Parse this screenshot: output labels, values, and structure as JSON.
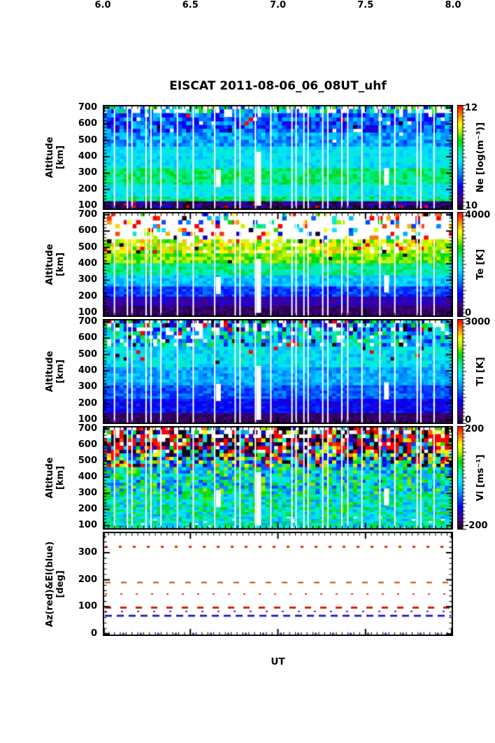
{
  "title": "EISCAT 2011-08-06_06_08UT_uhf",
  "x_axis": {
    "label": "UT",
    "tick_labels": [
      "6.0",
      "6.5",
      "7.0",
      "7.5",
      "8.0"
    ],
    "lim": [
      6.0,
      8.0
    ]
  },
  "colormap": [
    [
      0.0,
      "#160020"
    ],
    [
      0.1,
      "#45008e"
    ],
    [
      0.22,
      "#0000ff"
    ],
    [
      0.34,
      "#0084ff"
    ],
    [
      0.46,
      "#00e8ff"
    ],
    [
      0.56,
      "#00f0a0"
    ],
    [
      0.66,
      "#00d800"
    ],
    [
      0.74,
      "#a8f000"
    ],
    [
      0.82,
      "#ffff00"
    ],
    [
      0.9,
      "#ff8c00"
    ],
    [
      1.0,
      "#ff0000"
    ]
  ],
  "data_gaps": {
    "narrow": "white vertical scan-boundary gap columns repeated through all heatmap panels",
    "wide": [
      {
        "ut": 6.66,
        "alt": [
          215,
          320
        ]
      },
      {
        "ut": 6.89,
        "alt": [
          100,
          430
        ]
      },
      {
        "ut": 7.62,
        "alt": [
          225,
          330
        ]
      }
    ]
  },
  "chart_data": [
    {
      "type": "heatmap",
      "name": "Ne",
      "ylabel": "Altitude [km]",
      "ylabel_lines": [
        "Altitude",
        "[km]"
      ],
      "xlim": [
        6.0,
        8.0
      ],
      "ylim": [
        75,
        717
      ],
      "yticks": [
        700,
        600,
        500,
        400,
        300,
        200,
        100
      ],
      "colorbar": {
        "label": "Ne [log(m⁻³)]",
        "tick_labels": [
          "10",
          "12"
        ],
        "vmin": 10,
        "vmax": 12
      },
      "bands": [
        {
          "alt": [
            78,
            128
          ],
          "v": 10.18,
          "noise": 0.25,
          "outlier": 0.05
        },
        {
          "alt": [
            128,
            165
          ],
          "v": 11.15,
          "noise": 0.22
        },
        {
          "alt": [
            165,
            230
          ],
          "v": 10.95,
          "noise": 0.12
        },
        {
          "alt": [
            230,
            330
          ],
          "v": 11.18,
          "noise": 0.15
        },
        {
          "alt": [
            330,
            470
          ],
          "v": 10.92,
          "noise": 0.12
        },
        {
          "alt": [
            470,
            560
          ],
          "v": 10.75,
          "noise": 0.2,
          "white": 0.02
        },
        {
          "alt": [
            560,
            660
          ],
          "v": 10.6,
          "noise": 0.28,
          "white": 0.05,
          "outlier": 0.03
        },
        {
          "alt": [
            660,
            692
          ],
          "v": 10.85,
          "noise": 0.45,
          "white": 0.45
        },
        {
          "alt": [
            692,
            716
          ],
          "v": 10.95,
          "noise": 0.5,
          "white": 0.5
        }
      ]
    },
    {
      "type": "heatmap",
      "name": "Te",
      "ylabel": "Altitude [km]",
      "ylabel_lines": [
        "Altitude",
        "[km]"
      ],
      "xlim": [
        6.0,
        8.0
      ],
      "ylim": [
        75,
        717
      ],
      "yticks": [
        700,
        600,
        500,
        400,
        300,
        200,
        100
      ],
      "colorbar": {
        "label": "Te [K]",
        "tick_labels": [
          "0",
          "4000"
        ],
        "vmin": 0,
        "vmax": 4000
      },
      "bands": [
        {
          "alt": [
            78,
            150
          ],
          "v": 250,
          "noise": 150
        },
        {
          "alt": [
            150,
            205
          ],
          "v": 560,
          "noise": 200
        },
        {
          "alt": [
            205,
            265
          ],
          "v": 1100,
          "noise": 250
        },
        {
          "alt": [
            265,
            330
          ],
          "v": 1650,
          "noise": 250
        },
        {
          "alt": [
            330,
            405
          ],
          "v": 2250,
          "noise": 280
        },
        {
          "alt": [
            405,
            475
          ],
          "v": 2850,
          "noise": 300,
          "outlier": 0.02
        },
        {
          "alt": [
            475,
            545
          ],
          "v": 3100,
          "noise": 450,
          "white": 0.15,
          "outlier": 0.08
        },
        {
          "alt": [
            545,
            716
          ],
          "v": 2600,
          "noise": 1800,
          "white": 0.78,
          "outlier": 0.12
        }
      ]
    },
    {
      "type": "heatmap",
      "name": "Ti",
      "ylabel": "Altitude [km]",
      "ylabel_lines": [
        "Altitude",
        "[km]"
      ],
      "xlim": [
        6.0,
        8.0
      ],
      "ylim": [
        75,
        717
      ],
      "yticks": [
        700,
        600,
        500,
        400,
        300,
        200,
        100
      ],
      "colorbar": {
        "label": "Ti [K]",
        "tick_labels": [
          "0",
          "3000"
        ],
        "vmin": 0,
        "vmax": 3000
      },
      "bands": [
        {
          "alt": [
            78,
            150
          ],
          "v": 180,
          "noise": 100
        },
        {
          "alt": [
            150,
            230
          ],
          "v": 650,
          "noise": 180
        },
        {
          "alt": [
            230,
            320
          ],
          "v": 900,
          "noise": 200
        },
        {
          "alt": [
            320,
            420
          ],
          "v": 1150,
          "noise": 220
        },
        {
          "alt": [
            420,
            540
          ],
          "v": 1380,
          "noise": 260,
          "outlier": 0.03
        },
        {
          "alt": [
            540,
            650
          ],
          "v": 1300,
          "noise": 620,
          "white": 0.12,
          "outlier": 0.08
        },
        {
          "alt": [
            650,
            716
          ],
          "v": 1100,
          "noise": 900,
          "white": 0.25,
          "outlier": 0.12
        }
      ]
    },
    {
      "type": "heatmap",
      "name": "Vi",
      "ylabel": "Altitude [km]",
      "ylabel_lines": [
        "Altitude",
        "[km]"
      ],
      "xlim": [
        6.0,
        8.0
      ],
      "ylim": [
        75,
        717
      ],
      "yticks": [
        700,
        600,
        500,
        400,
        300,
        200,
        100
      ],
      "colorbar": {
        "label": "Vi [ms⁻¹]",
        "tick_labels": [
          "-200",
          "200"
        ],
        "vmin": -200,
        "vmax": 200
      },
      "bands": [
        {
          "alt": [
            78,
            160
          ],
          "v": 0,
          "noise": 60,
          "white": 0.03
        },
        {
          "alt": [
            160,
            300
          ],
          "v": 10,
          "noise": 70
        },
        {
          "alt": [
            300,
            460
          ],
          "v": 0,
          "noise": 95
        },
        {
          "alt": [
            460,
            550
          ],
          "v": -15,
          "noise": 185,
          "outlier": 0.1
        },
        {
          "alt": [
            550,
            650
          ],
          "v": 0,
          "noise": 330,
          "white": 0.08,
          "outlier": 0.2
        },
        {
          "alt": [
            650,
            700
          ],
          "v": 30,
          "noise": 350,
          "white": 0.3,
          "outlier": 0.3
        },
        {
          "alt": [
            700,
            716
          ],
          "v": 80,
          "noise": 300,
          "white": 0.5,
          "outlier": 0.3
        }
      ]
    },
    {
      "type": "line",
      "name": "AzEl",
      "ylabel": "Az(red)&El(blue) [deg]",
      "ylabel_lines": [
        "Az(red)&El(blue)",
        "[deg]"
      ],
      "xlim": [
        6.0,
        8.0
      ],
      "ylim": [
        -8,
        378
      ],
      "yticks": [
        300,
        200,
        100,
        0
      ],
      "az_color": "#e81800",
      "el_color": "#1f16c4",
      "series": [
        {
          "name": "Az",
          "color": "#e81800",
          "deg": 322,
          "dash": [
            4,
            16
          ],
          "lw": 2.6
        },
        {
          "name": "Az",
          "color": "#e81800",
          "deg": 190,
          "dash": [
            8,
            15
          ],
          "lw": 1.8
        },
        {
          "name": "Az",
          "color": "#e81800",
          "deg": 147,
          "dash": [
            3,
            19
          ],
          "lw": 1.8
        },
        {
          "name": "Az",
          "color": "#e81800",
          "deg": 97,
          "dash": [
            9,
            13
          ],
          "lw": 3.0
        },
        {
          "name": "El",
          "color": "#1f16c4",
          "deg": 83,
          "dash": [
            3,
            20
          ],
          "lw": 1.6
        },
        {
          "name": "El",
          "color": "#1f16c4",
          "deg": 67,
          "dash": [
            10,
            7
          ],
          "lw": 2.8
        },
        {
          "name": "El",
          "color": "#1f16c4",
          "deg": 1,
          "dash": [
            3,
            22
          ],
          "lw": 2.2
        }
      ]
    }
  ]
}
